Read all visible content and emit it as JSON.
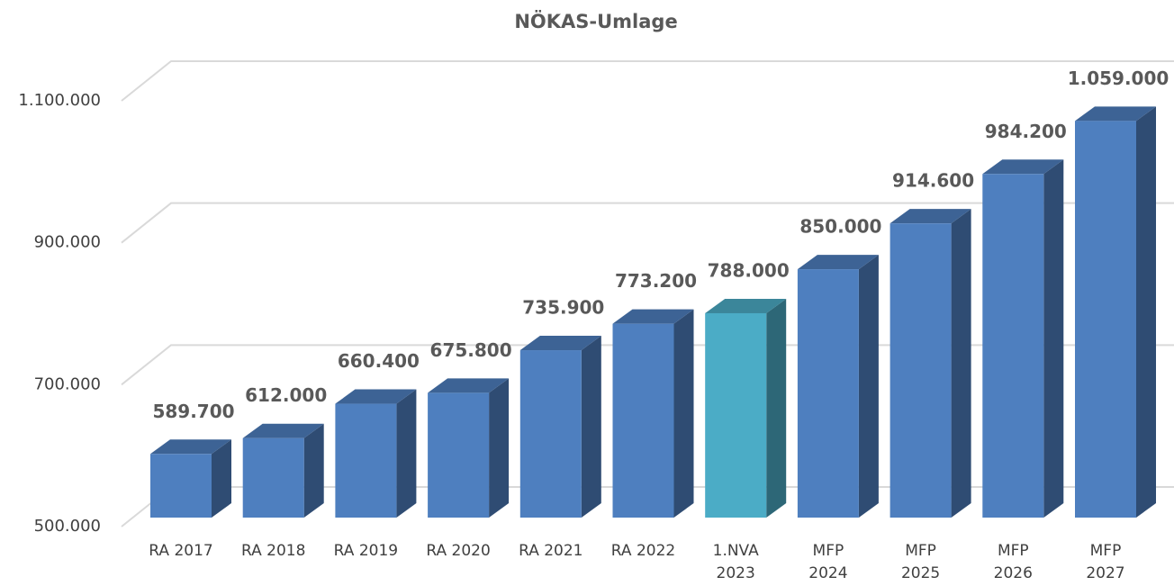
{
  "chart_data": {
    "type": "bar3d",
    "title": "NÖKAS-Umlage",
    "categories": [
      "RA 2017",
      "RA 2018",
      "RA 2019",
      "RA 2020",
      "RA 2021",
      "RA 2022",
      "1.NVA 2023",
      "MFP 2024",
      "MFP 2025",
      "MFP 2026",
      "MFP 2027"
    ],
    "values": [
      589700,
      612000,
      660400,
      675800,
      735900,
      773200,
      788000,
      850000,
      914600,
      984200,
      1059000
    ],
    "value_labels": [
      "589.700",
      "612.000",
      "660.400",
      "675.800",
      "735.900",
      "773.200",
      "788.000",
      "850.000",
      "914.600",
      "984.200",
      "1.059.000"
    ],
    "colors": [
      "#4e7fbf",
      "#4e7fbf",
      "#4e7fbf",
      "#4e7fbf",
      "#4e7fbf",
      "#4e7fbf",
      "#4bacc6",
      "#4e7fbf",
      "#4e7fbf",
      "#4e7fbf",
      "#4e7fbf"
    ],
    "ylim": [
      500000,
      1100000
    ],
    "yticks": [
      {
        "value": 500000,
        "label": "500.000"
      },
      {
        "value": 700000,
        "label": "700.000"
      },
      {
        "value": 900000,
        "label": "900.000"
      },
      {
        "value": 1100000,
        "label": "1.100.000"
      }
    ],
    "grid": true
  }
}
